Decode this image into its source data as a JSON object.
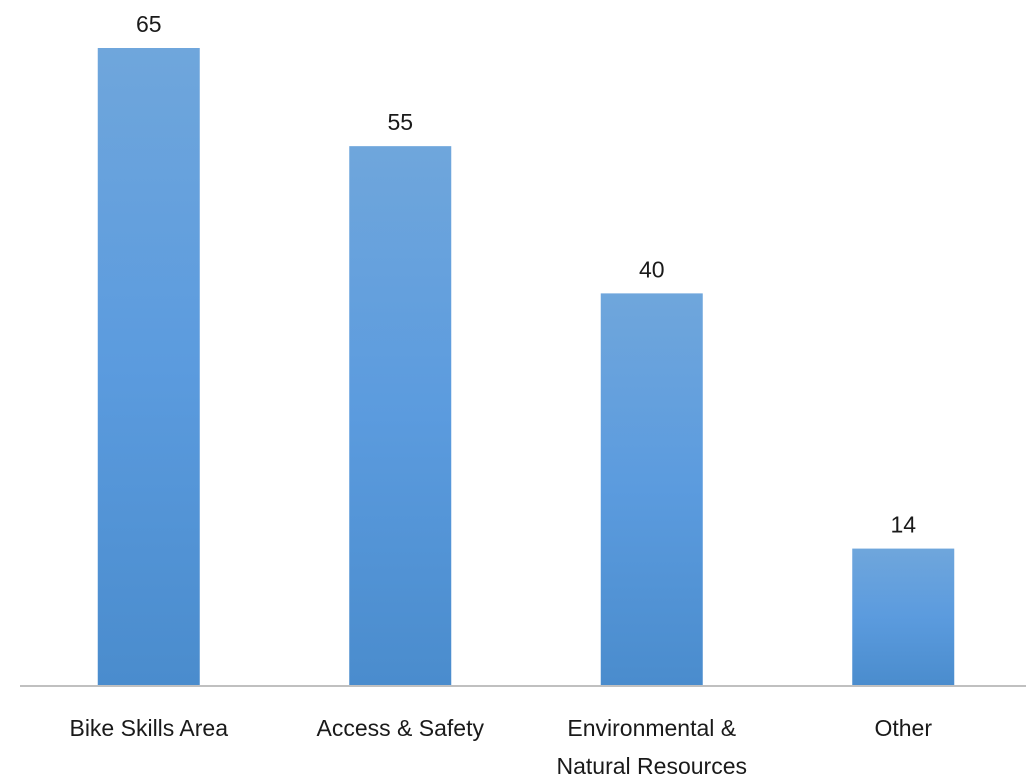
{
  "chart_data": {
    "type": "bar",
    "categories": [
      [
        "Bike Skills Area"
      ],
      [
        "Access & Safety"
      ],
      [
        "Environmental &",
        "Natural Resources"
      ],
      [
        "Other"
      ]
    ],
    "values": [
      65,
      55,
      40,
      14
    ],
    "data_labels": [
      "65",
      "55",
      "40",
      "14"
    ],
    "title": "",
    "xlabel": "",
    "ylabel": "",
    "ylim": [
      0,
      65
    ],
    "grid": false,
    "legend": "none",
    "bar_color_top": "#6fa6dc",
    "bar_color_bottom": "#4a8ccd",
    "axis_color": "#c0c0c0"
  }
}
